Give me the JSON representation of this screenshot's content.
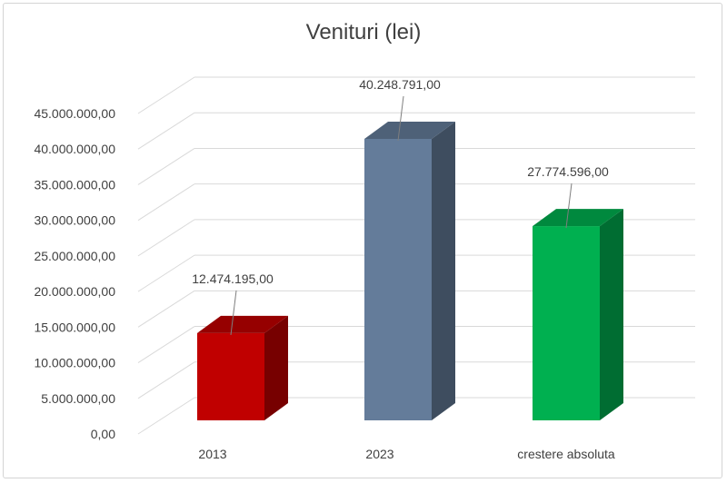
{
  "chart_data": {
    "type": "bar",
    "title": "Venituri (lei)",
    "categories": [
      "2013",
      "2023",
      "crestere absoluta"
    ],
    "values": [
      12474195,
      40248791,
      27774596
    ],
    "data_labels": [
      "12.474.195,00",
      "40.248.791,00",
      "27.774.596,00"
    ],
    "ylim": [
      0,
      45000000
    ],
    "yticks": [
      0,
      5000000,
      10000000,
      15000000,
      20000000,
      25000000,
      30000000,
      35000000,
      40000000,
      45000000
    ],
    "ytick_labels": [
      "0,00",
      "5.000.000,00",
      "10.000.000,00",
      "15.000.000,00",
      "20.000.000,00",
      "25.000.000,00",
      "30.000.000,00",
      "35.000.000,00",
      "40.000.000,00",
      "45.000.000,00"
    ],
    "colors": [
      "#c00000",
      "#647c9a",
      "#00b050"
    ],
    "grid": true,
    "style": "3d-column"
  }
}
